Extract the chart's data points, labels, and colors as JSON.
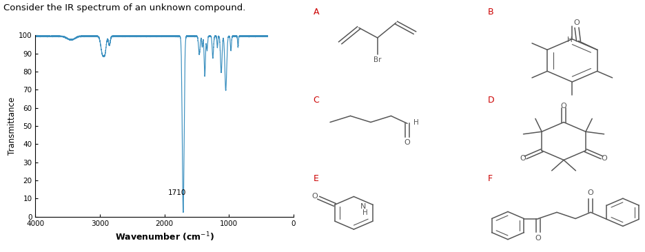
{
  "title": "Consider the IR spectrum of an unknown compound.",
  "ylabel": "Transmittance",
  "xlabel": "Wavenumber (cm$^{-1}$)",
  "xlim": [
    4000,
    0
  ],
  "ylim": [
    0,
    100
  ],
  "yticks": [
    0,
    10,
    20,
    30,
    40,
    50,
    60,
    70,
    80,
    90,
    100
  ],
  "xticks": [
    4000,
    3000,
    2000,
    1000,
    0
  ],
  "line_color": "#3a8fbf",
  "annotation_1710": "1710",
  "background": "#ffffff",
  "label_color_red": "#cc0000",
  "label_color_black": "#333333",
  "struct_line_color": "#555555",
  "struct_lw": 1.1
}
